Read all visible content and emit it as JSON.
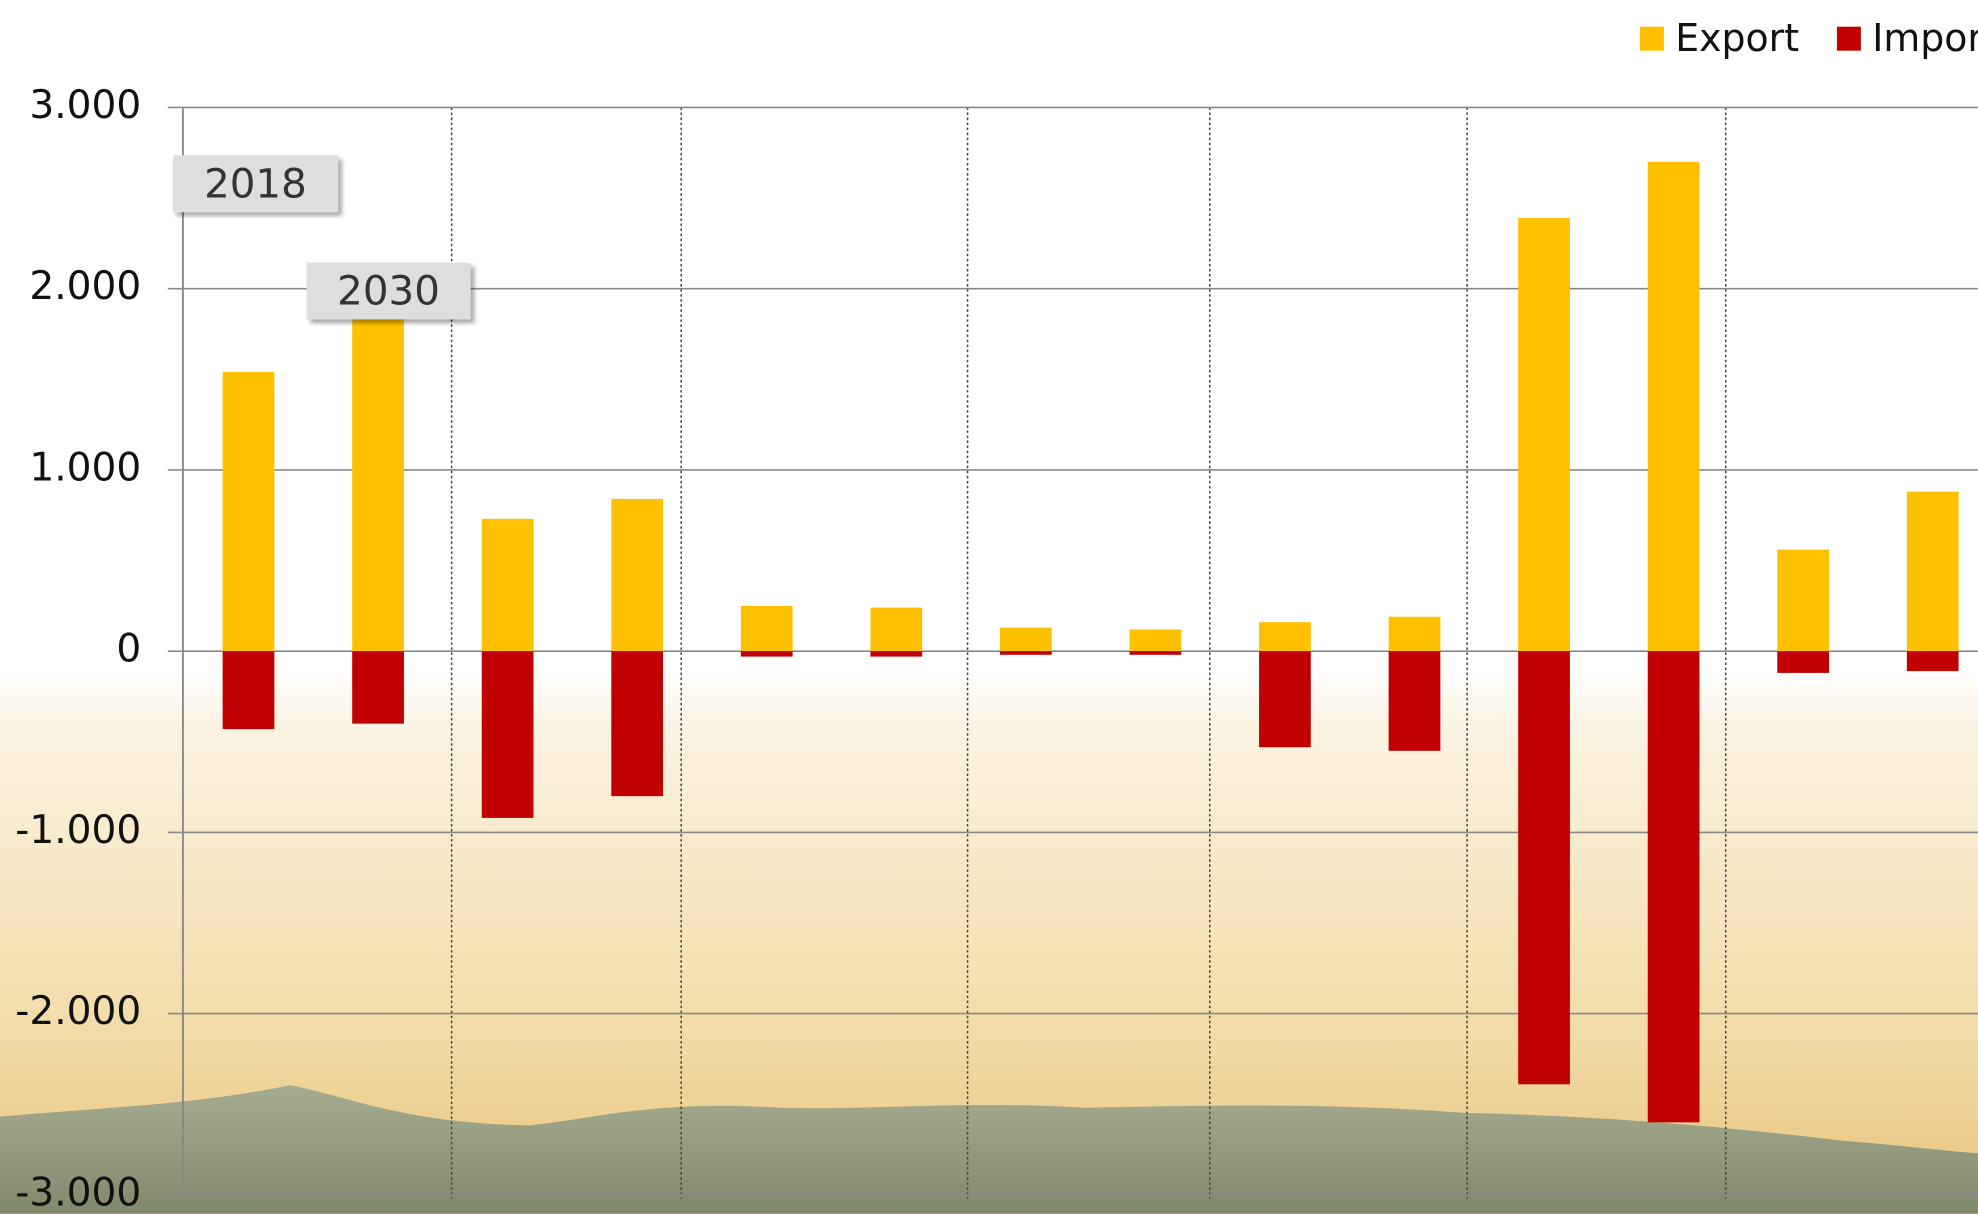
{
  "chart_data": {
    "type": "bar",
    "categories": [
      null,
      null,
      null,
      null,
      null,
      null,
      null,
      null,
      null,
      null,
      null,
      null,
      null,
      null
    ],
    "series": [
      {
        "name": "Export",
        "color": "#ffc000",
        "values": [
          1540,
          1850,
          730,
          840,
          250,
          240,
          130,
          120,
          160,
          190,
          2390,
          2700,
          560,
          880
        ]
      },
      {
        "name": "Import",
        "color": "#c00000",
        "values": [
          -430,
          -400,
          -920,
          -800,
          -30,
          -30,
          -20,
          -20,
          -530,
          -550,
          -2390,
          -2600,
          -120,
          -110
        ]
      }
    ],
    "annotations": [
      "2018",
      "2030"
    ],
    "ylim": [
      -3000,
      3000
    ],
    "yticks": [
      {
        "value": 3000,
        "label": "3.000"
      },
      {
        "value": 2000,
        "label": "2.000"
      },
      {
        "value": 1000,
        "label": "1.000"
      },
      0,
      {
        "value": -1000,
        "label": "-1.000"
      },
      {
        "value": -2000,
        "label": "-2.000"
      },
      {
        "value": -3000,
        "label": "-3.000"
      }
    ],
    "grid": true,
    "legend": "top-right"
  }
}
